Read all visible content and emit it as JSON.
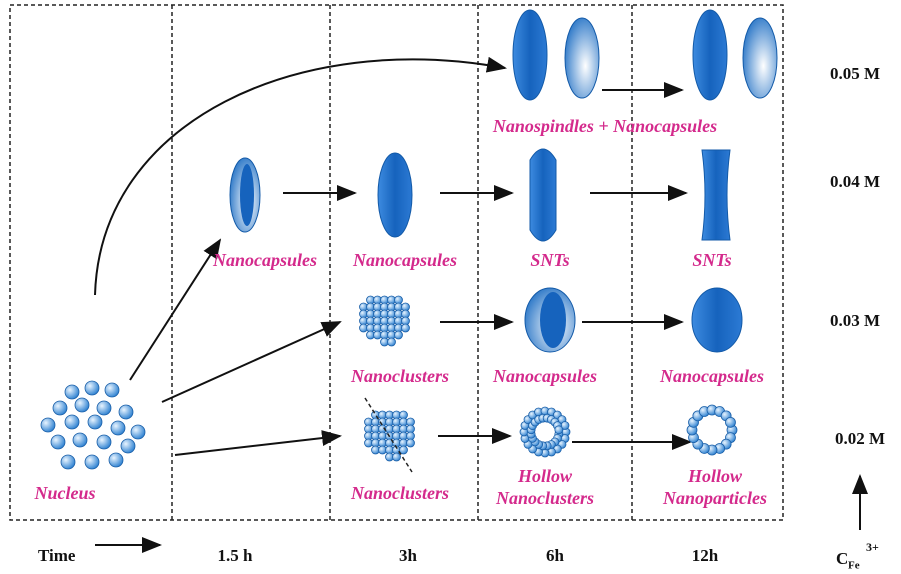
{
  "time_axis": {
    "label": "Time",
    "ticks": [
      "1.5 h",
      "3h",
      "6h",
      "12h"
    ]
  },
  "concentration_axis": {
    "symbol": "C",
    "subscript": "Fe",
    "superscript": "3+",
    "levels": [
      "0.05 M",
      "0.04 M",
      "0.03 M",
      "0.02 M"
    ]
  },
  "labels": {
    "nucleus": "Nucleus",
    "row_005": "Nanospindles + Nanocapsules",
    "row_004": [
      "Nanocapsules",
      "Nanocapsules",
      "SNTs",
      "SNTs"
    ],
    "row_003": [
      "Nanoclusters",
      "Nanocapsules",
      "Nanocapsules"
    ],
    "row_002": [
      "Nanoclusters",
      "Hollow",
      "Nanoclusters",
      "Hollow",
      "Nanoparticles"
    ]
  }
}
